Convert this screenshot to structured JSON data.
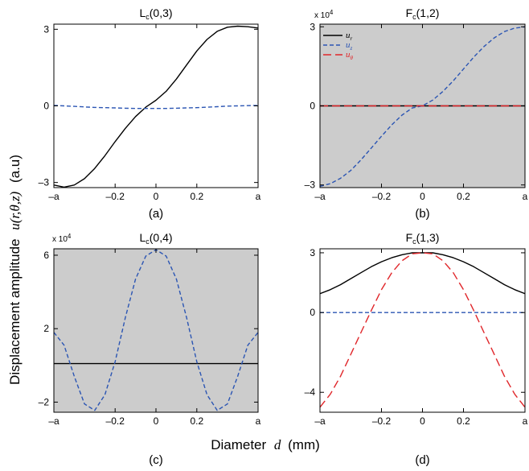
{
  "figure": {
    "ylabel_main": "Displacement amplitude",
    "ylabel_func": "u(r,θ,z)",
    "ylabel_unit": "(a.u)",
    "xlabel_main": "Diameter",
    "xlabel_var": "d",
    "xlabel_unit": "(mm)"
  },
  "colors": {
    "u_r": "#000000",
    "u_z": "#2b55b3",
    "u_theta": "#e0262a",
    "shaded_bg": "#cccccc"
  },
  "legend": [
    {
      "base": "u",
      "sub": "r",
      "color": "#000000",
      "dash": "solid"
    },
    {
      "base": "u",
      "sub": "z",
      "color": "#2b55b3",
      "dash": "short"
    },
    {
      "base": "u",
      "sub": "θ",
      "color": "#e0262a",
      "dash": "long"
    }
  ],
  "chart_data": [
    {
      "type": "line",
      "title_base": "L",
      "title_sub": "c",
      "title_mode": "(0,3)",
      "panel_label": "(a)",
      "shaded": false,
      "multiplier": "",
      "xlim": [
        -1,
        1
      ],
      "ylim": [
        -3.2,
        3.2
      ],
      "xtick_values": [
        -1,
        -0.4,
        0,
        0.4,
        1
      ],
      "xtick_labels": [
        "–a",
        "–0.2",
        "0",
        "0.2",
        "a"
      ],
      "ytick_values": [
        -3,
        0,
        3
      ],
      "ytick_labels": [
        "–3",
        "0",
        "3"
      ],
      "x": [
        -1.0,
        -0.9,
        -0.8,
        -0.7,
        -0.6,
        -0.5,
        -0.4,
        -0.3,
        -0.2,
        -0.1,
        0.0,
        0.1,
        0.2,
        0.3,
        0.4,
        0.5,
        0.6,
        0.7,
        0.8,
        0.9,
        1.0
      ],
      "series": [
        {
          "name": "u_r",
          "color": "#000000",
          "dash": "solid",
          "values": [
            -3.1,
            -3.18,
            -3.1,
            -2.85,
            -2.45,
            -1.95,
            -1.4,
            -0.88,
            -0.42,
            -0.05,
            0.22,
            0.57,
            1.05,
            1.6,
            2.15,
            2.6,
            2.92,
            3.08,
            3.12,
            3.1,
            3.05
          ]
        },
        {
          "name": "u_z",
          "color": "#2b55b3",
          "dash": "short",
          "values": [
            0.02,
            0.0,
            -0.02,
            -0.04,
            -0.06,
            -0.07,
            -0.08,
            -0.09,
            -0.1,
            -0.1,
            -0.1,
            -0.1,
            -0.09,
            -0.08,
            -0.07,
            -0.05,
            -0.03,
            -0.01,
            0.0,
            0.01,
            0.02
          ]
        }
      ]
    },
    {
      "type": "line",
      "title_base": "F",
      "title_sub": "c",
      "title_mode": "(1,2)",
      "panel_label": "(b)",
      "shaded": true,
      "multiplier": "x 10",
      "multiplier_exp": "4",
      "xlim": [
        -1,
        1
      ],
      "ylim": [
        -3.1,
        3.1
      ],
      "xtick_values": [
        -1,
        -0.4,
        0,
        0.4,
        1
      ],
      "xtick_labels": [
        "–a",
        "–0.2",
        "0",
        "0.2",
        "a"
      ],
      "ytick_values": [
        -3,
        0,
        3
      ],
      "ytick_labels": [
        "–3",
        "0",
        "3"
      ],
      "x": [
        -1.0,
        -0.9,
        -0.8,
        -0.7,
        -0.6,
        -0.5,
        -0.4,
        -0.3,
        -0.2,
        -0.1,
        0.0,
        0.1,
        0.2,
        0.3,
        0.4,
        0.5,
        0.6,
        0.7,
        0.8,
        0.9,
        1.0
      ],
      "series": [
        {
          "name": "u_r",
          "color": "#000000",
          "dash": "solid",
          "values": [
            0,
            0,
            0,
            0,
            0,
            0,
            0,
            0,
            0,
            0,
            0,
            0,
            0,
            0,
            0,
            0,
            0,
            0,
            0,
            0,
            0
          ]
        },
        {
          "name": "u_z",
          "color": "#2b55b3",
          "dash": "short",
          "values": [
            -3.05,
            -2.95,
            -2.75,
            -2.45,
            -2.05,
            -1.6,
            -1.15,
            -0.72,
            -0.35,
            -0.08,
            0.0,
            0.22,
            0.55,
            0.95,
            1.4,
            1.85,
            2.25,
            2.58,
            2.82,
            2.95,
            3.0
          ]
        },
        {
          "name": "u_θ",
          "color": "#e0262a",
          "dash": "long",
          "values": [
            0,
            0,
            0,
            0,
            0,
            0,
            0,
            0,
            0,
            0,
            0,
            0,
            0,
            0,
            0,
            0,
            0,
            0,
            0,
            0,
            0
          ]
        }
      ]
    },
    {
      "type": "line",
      "title_base": "L",
      "title_sub": "c",
      "title_mode": "(0,4)",
      "panel_label": "(c)",
      "shaded": true,
      "multiplier": "x 10",
      "multiplier_exp": "4",
      "xlim": [
        -1,
        1
      ],
      "ylim": [
        -2.55,
        6.35
      ],
      "xtick_values": [
        -1,
        -0.4,
        0,
        0.4,
        1
      ],
      "xtick_labels": [
        "–a",
        "–0.2",
        "0",
        "0.2",
        "a"
      ],
      "ytick_values": [
        -2,
        2,
        6
      ],
      "ytick_labels": [
        "–2",
        "2",
        "6"
      ],
      "x": [
        -1.0,
        -0.9,
        -0.8,
        -0.7,
        -0.6,
        -0.5,
        -0.4,
        -0.3,
        -0.2,
        -0.1,
        0.0,
        0.1,
        0.2,
        0.3,
        0.4,
        0.5,
        0.6,
        0.7,
        0.8,
        0.9,
        1.0
      ],
      "series": [
        {
          "name": "u_r",
          "color": "#000000",
          "dash": "solid",
          "values": [
            0.1,
            0.1,
            0.1,
            0.1,
            0.1,
            0.1,
            0.1,
            0.1,
            0.1,
            0.1,
            0.1,
            0.1,
            0.1,
            0.1,
            0.1,
            0.1,
            0.1,
            0.1,
            0.1,
            0.1,
            0.1
          ]
        },
        {
          "name": "u_z",
          "color": "#2b55b3",
          "dash": "short",
          "values": [
            1.8,
            1.1,
            -0.6,
            -2.1,
            -2.45,
            -1.6,
            0.2,
            2.6,
            4.7,
            5.95,
            6.3,
            5.95,
            4.7,
            2.6,
            0.2,
            -1.6,
            -2.45,
            -2.1,
            -0.6,
            1.1,
            1.8
          ]
        }
      ]
    },
    {
      "type": "line",
      "title_base": "F",
      "title_sub": "c",
      "title_mode": "(1,3)",
      "panel_label": "(d)",
      "shaded": false,
      "multiplier": "",
      "xlim": [
        -1,
        1
      ],
      "ylim": [
        -5.0,
        3.2
      ],
      "xtick_values": [
        -1,
        -0.4,
        0,
        0.4,
        1
      ],
      "xtick_labels": [
        "–a",
        "–0.2",
        "0",
        "0.2",
        "a"
      ],
      "ytick_values": [
        -4,
        0,
        3
      ],
      "ytick_labels": [
        "–4",
        "0",
        "3"
      ],
      "x": [
        -1.0,
        -0.9,
        -0.8,
        -0.7,
        -0.6,
        -0.5,
        -0.4,
        -0.3,
        -0.2,
        -0.1,
        0.0,
        0.1,
        0.2,
        0.3,
        0.4,
        0.5,
        0.6,
        0.7,
        0.8,
        0.9,
        1.0
      ],
      "series": [
        {
          "name": "u_r",
          "color": "#000000",
          "dash": "solid",
          "values": [
            0.95,
            1.15,
            1.4,
            1.7,
            2.0,
            2.3,
            2.55,
            2.75,
            2.9,
            3.0,
            3.0,
            3.0,
            2.9,
            2.75,
            2.55,
            2.3,
            2.0,
            1.7,
            1.4,
            1.15,
            0.95
          ]
        },
        {
          "name": "u_z",
          "color": "#2b55b3",
          "dash": "short",
          "values": [
            0,
            0,
            0,
            0,
            0,
            0,
            0,
            0,
            0,
            0,
            0,
            0,
            0,
            0,
            0,
            0,
            0,
            0,
            0,
            0,
            0
          ]
        },
        {
          "name": "u_θ",
          "color": "#e0262a",
          "dash": "long",
          "values": [
            -4.75,
            -4.1,
            -3.2,
            -2.1,
            -1.0,
            0.1,
            1.15,
            2.0,
            2.6,
            2.95,
            3.0,
            2.95,
            2.6,
            2.0,
            1.15,
            0.1,
            -1.0,
            -2.1,
            -3.2,
            -4.1,
            -4.75
          ]
        }
      ]
    }
  ]
}
